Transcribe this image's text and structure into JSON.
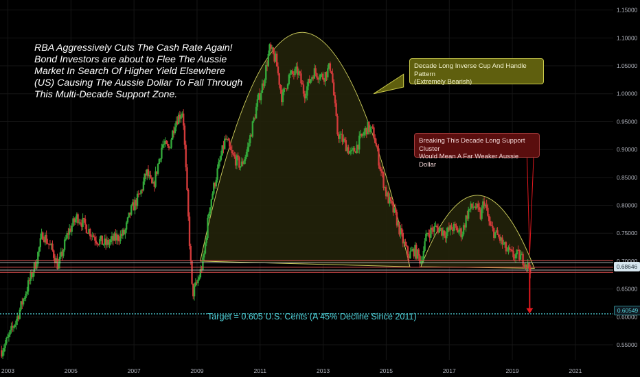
{
  "chart_data": {
    "type": "candlestick",
    "title": "",
    "xlabel": "",
    "ylabel": "",
    "x_range": [
      2002.75,
      2022.2
    ],
    "ylim": [
      0.523,
      1.168
    ],
    "x_ticks": [
      "2003",
      "2005",
      "2007",
      "2009",
      "2011",
      "2013",
      "2015",
      "2017",
      "2019",
      "2021"
    ],
    "y_ticks": [
      "0.55000",
      "0.60000",
      "0.65000",
      "0.70000",
      "0.75000",
      "0.80000",
      "0.85000",
      "0.90000",
      "0.95000",
      "1.00000",
      "1.05000",
      "1.10000",
      "1.15000"
    ],
    "price_series": [
      [
        2002.8,
        0.54
      ],
      [
        2003.0,
        0.56
      ],
      [
        2003.3,
        0.6
      ],
      [
        2003.6,
        0.65
      ],
      [
        2003.9,
        0.7
      ],
      [
        2004.1,
        0.75
      ],
      [
        2004.4,
        0.72
      ],
      [
        2004.6,
        0.69
      ],
      [
        2004.9,
        0.75
      ],
      [
        2005.2,
        0.78
      ],
      [
        2005.5,
        0.76
      ],
      [
        2005.8,
        0.74
      ],
      [
        2006.1,
        0.73
      ],
      [
        2006.4,
        0.74
      ],
      [
        2006.7,
        0.75
      ],
      [
        2006.9,
        0.79
      ],
      [
        2007.2,
        0.82
      ],
      [
        2007.4,
        0.86
      ],
      [
        2007.6,
        0.83
      ],
      [
        2007.9,
        0.91
      ],
      [
        2008.1,
        0.9
      ],
      [
        2008.3,
        0.95
      ],
      [
        2008.55,
        0.97
      ],
      [
        2008.7,
        0.8
      ],
      [
        2008.85,
        0.64
      ],
      [
        2009.0,
        0.66
      ],
      [
        2009.2,
        0.7
      ],
      [
        2009.4,
        0.8
      ],
      [
        2009.6,
        0.85
      ],
      [
        2009.9,
        0.92
      ],
      [
        2010.1,
        0.89
      ],
      [
        2010.4,
        0.87
      ],
      [
        2010.6,
        0.9
      ],
      [
        2010.9,
        0.98
      ],
      [
        2011.1,
        1.02
      ],
      [
        2011.3,
        1.08
      ],
      [
        2011.5,
        1.06
      ],
      [
        2011.7,
        0.99
      ],
      [
        2011.9,
        1.03
      ],
      [
        2012.2,
        1.04
      ],
      [
        2012.4,
        1.0
      ],
      [
        2012.7,
        1.04
      ],
      [
        2013.0,
        1.03
      ],
      [
        2013.25,
        1.05
      ],
      [
        2013.45,
        0.93
      ],
      [
        2013.7,
        0.91
      ],
      [
        2013.9,
        0.89
      ],
      [
        2014.2,
        0.92
      ],
      [
        2014.4,
        0.94
      ],
      [
        2014.6,
        0.93
      ],
      [
        2014.8,
        0.87
      ],
      [
        2015.0,
        0.82
      ],
      [
        2015.3,
        0.78
      ],
      [
        2015.5,
        0.74
      ],
      [
        2015.7,
        0.71
      ],
      [
        2015.9,
        0.72
      ],
      [
        2016.1,
        0.7
      ],
      [
        2016.3,
        0.75
      ],
      [
        2016.6,
        0.76
      ],
      [
        2016.9,
        0.75
      ],
      [
        2017.1,
        0.76
      ],
      [
        2017.4,
        0.75
      ],
      [
        2017.6,
        0.79
      ],
      [
        2017.8,
        0.8
      ],
      [
        2018.0,
        0.78
      ],
      [
        2018.1,
        0.81
      ],
      [
        2018.3,
        0.76
      ],
      [
        2018.6,
        0.74
      ],
      [
        2018.8,
        0.72
      ],
      [
        2019.0,
        0.71
      ],
      [
        2019.2,
        0.71
      ],
      [
        2019.4,
        0.7
      ],
      [
        2019.5,
        0.69
      ],
      [
        2019.6,
        0.687
      ]
    ],
    "cup_large": {
      "start": [
        2009.1,
        0.7
      ],
      "peak": [
        2012.35,
        1.11
      ],
      "end": [
        2015.75,
        0.69
      ]
    },
    "cup_handle": {
      "start": [
        2016.1,
        0.69
      ],
      "peak": [
        2017.9,
        0.818
      ],
      "end": [
        2019.7,
        0.687
      ]
    },
    "support_lines": [
      0.701,
      0.697,
      0.689,
      0.684,
      0.68
    ],
    "target_line": 0.60549,
    "last_price": 0.68646,
    "projection_arrow": {
      "from": [
        2019.55,
        0.69
      ],
      "to": [
        2019.55,
        0.606
      ]
    },
    "callout_arrow_cup": {
      "from": [
        2014.6,
        1.0
      ],
      "to": [
        2015.1,
        1.02
      ]
    },
    "callout_arrow_support": {
      "from": [
        2019.55,
        0.92
      ],
      "to": [
        2019.55,
        0.705
      ]
    },
    "colors": {
      "background": "#000000",
      "grid": "#161616",
      "candle_up": "#26a69a",
      "candle_down": "#ef5350",
      "green": "#33a83a",
      "red": "#d13a3a",
      "cup_fill": "#22220a",
      "cup_line": "#c8c85a",
      "support": "#e05050",
      "support_dark": "#b0b0b0",
      "target": "#4fd1d9",
      "arrow": "#e3191f",
      "axis_text": "#b2b5be"
    }
  },
  "annotations": {
    "commentary_lines": [
      "RBA Aggressively Cuts The Cash Rate Again!",
      "Bond Investors are about to Flee The Aussie",
      "Market In Search Of Higher Yield Elsewhere",
      "(US) Causing The Aussie Dollar To Fall Through",
      "This Multi-Decade Support Zone."
    ],
    "cup_box_lines": [
      "Decade Long Inverse Cup And Handle Pattern",
      "(Extremely Bearish)"
    ],
    "support_box_lines": [
      "Breaking This Decade Long Support Cluster",
      "Would Mean A Far Weaker Aussie Dollar"
    ],
    "target_text": "Target = 0.605 U.S. Cents (A 45% Decline Since 2011)",
    "price_tag_last": "0.68646",
    "price_tag_target": "0.60549"
  }
}
